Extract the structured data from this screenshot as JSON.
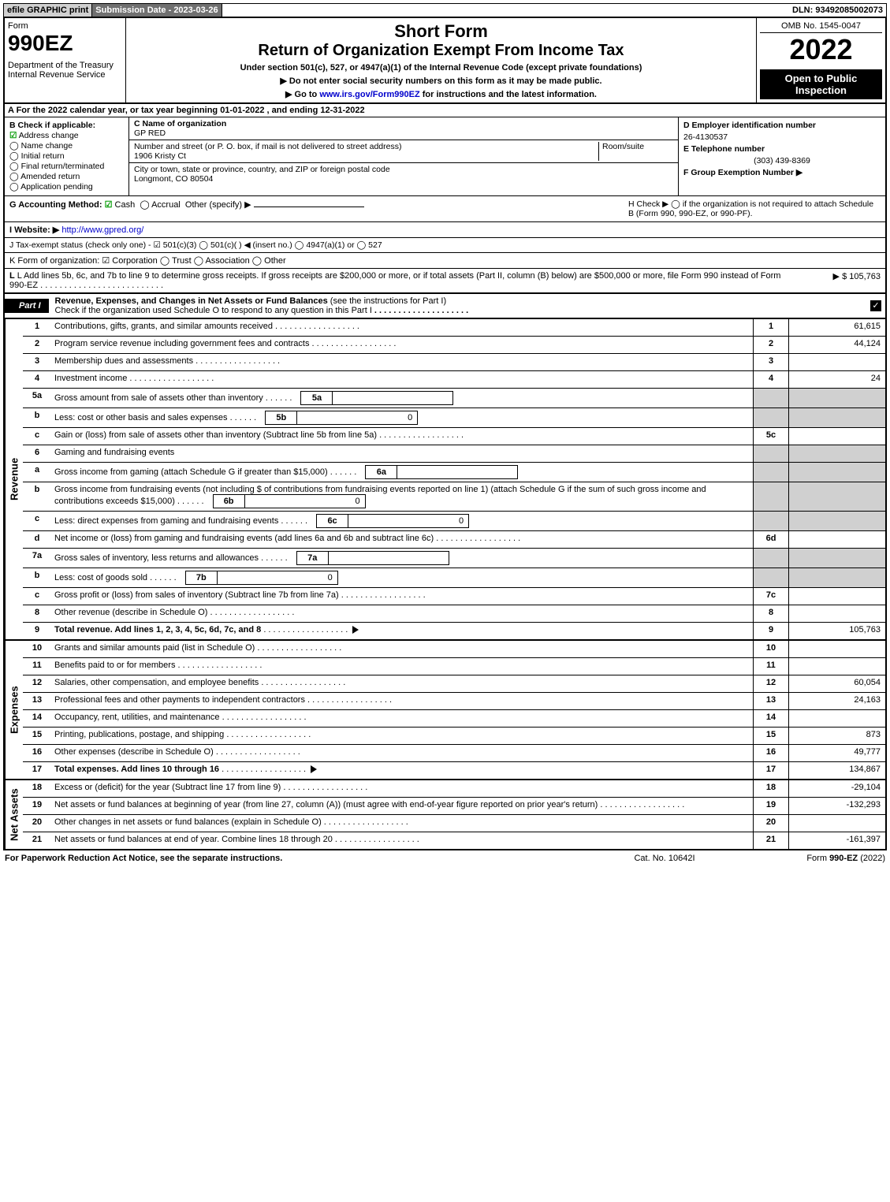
{
  "topbar": {
    "efile": "efile GRAPHIC print",
    "submission": "Submission Date - 2023-03-26",
    "dln": "DLN: 93492085002073"
  },
  "header": {
    "form_word": "Form",
    "form_number": "990EZ",
    "dept": "Department of the Treasury\nInternal Revenue Service",
    "short_form": "Short Form",
    "title": "Return of Organization Exempt From Income Tax",
    "under_section": "Under section 501(c), 527, or 4947(a)(1) of the Internal Revenue Code (except private foundations)",
    "no_ssn": "▶ Do not enter social security numbers on this form as it may be made public.",
    "goto": "▶ Go to www.irs.gov/Form990EZ for instructions and the latest information.",
    "goto_link": "www.irs.gov/Form990EZ",
    "omb": "OMB No. 1545-0047",
    "year": "2022",
    "open": "Open to Public Inspection"
  },
  "lineA": "A  For the 2022 calendar year, or tax year beginning 01-01-2022 , and ending 12-31-2022",
  "boxB": {
    "title": "B  Check if applicable:",
    "items": [
      {
        "label": "Address change",
        "checked": true
      },
      {
        "label": "Name change",
        "checked": false
      },
      {
        "label": "Initial return",
        "checked": false
      },
      {
        "label": "Final return/terminated",
        "checked": false
      },
      {
        "label": "Amended return",
        "checked": false
      },
      {
        "label": "Application pending",
        "checked": false
      }
    ]
  },
  "boxC": {
    "c_label": "C Name of organization",
    "c_name": "GP RED",
    "street_label": "Number and street (or P. O. box, if mail is not delivered to street address)",
    "room_label": "Room/suite",
    "street": "1906 Kristy Ct",
    "city_label": "City or town, state or province, country, and ZIP or foreign postal code",
    "city": "Longmont, CO  80504"
  },
  "boxDE": {
    "d_label": "D Employer identification number",
    "d_val": "26-4130537",
    "e_label": "E Telephone number",
    "e_val": "(303) 439-8369",
    "f_label": "F Group Exemption Number  ▶"
  },
  "lineG": {
    "label": "G Accounting Method:",
    "cash": "Cash",
    "accrual": "Accrual",
    "other": "Other (specify) ▶",
    "h_text": "H  Check ▶  ◯  if the organization is not required to attach Schedule B (Form 990, 990-EZ, or 990-PF)."
  },
  "lineI": {
    "label": "I Website: ▶",
    "url": "http://www.gpred.org/"
  },
  "lineJ": "J Tax-exempt status (check only one) - ☑ 501(c)(3) ◯ 501(c)(  ) ◀ (insert no.) ◯ 4947(a)(1) or ◯ 527",
  "lineK": "K Form of organization:  ☑ Corporation  ◯ Trust  ◯ Association  ◯ Other",
  "lineL": {
    "text": "L Add lines 5b, 6c, and 7b to line 9 to determine gross receipts. If gross receipts are $200,000 or more, or if total assets (Part II, column (B) below) are $500,000 or more, file Form 990 instead of Form 990-EZ",
    "amount": "▶ $ 105,763"
  },
  "part1": {
    "label": "Part I",
    "title": "Revenue, Expenses, and Changes in Net Assets or Fund Balances",
    "note": "(see the instructions for Part I)",
    "check_note": "Check if the organization used Schedule O to respond to any question in this Part I"
  },
  "revenue": {
    "side": "Revenue",
    "rows": [
      {
        "n": "1",
        "desc": "Contributions, gifts, grants, and similar amounts received",
        "box": "1",
        "amt": "61,615"
      },
      {
        "n": "2",
        "desc": "Program service revenue including government fees and contracts",
        "box": "2",
        "amt": "44,124"
      },
      {
        "n": "3",
        "desc": "Membership dues and assessments",
        "box": "3",
        "amt": ""
      },
      {
        "n": "4",
        "desc": "Investment income",
        "box": "4",
        "amt": "24"
      },
      {
        "n": "5a",
        "desc": "Gross amount from sale of assets other than inventory",
        "inner_box": "5a",
        "inner_val": "",
        "shaded_box": true
      },
      {
        "n": "b",
        "desc": "Less: cost or other basis and sales expenses",
        "inner_box": "5b",
        "inner_val": "0",
        "shaded_box": true
      },
      {
        "n": "c",
        "desc": "Gain or (loss) from sale of assets other than inventory (Subtract line 5b from line 5a)",
        "box": "5c",
        "amt": ""
      },
      {
        "n": "6",
        "desc": "Gaming and fundraising events",
        "shaded_box": true,
        "no_box": true
      },
      {
        "n": "a",
        "desc": "Gross income from gaming (attach Schedule G if greater than $15,000)",
        "inner_box": "6a",
        "inner_val": "",
        "shaded_box": true
      },
      {
        "n": "b",
        "desc": "Gross income from fundraising events (not including $                    of contributions from fundraising events reported on line 1) (attach Schedule G if the sum of such gross income and contributions exceeds $15,000)",
        "inner_box": "6b",
        "inner_val": "0",
        "shaded_box": true
      },
      {
        "n": "c",
        "desc": "Less: direct expenses from gaming and fundraising events",
        "inner_box": "6c",
        "inner_val": "0",
        "shaded_box": true
      },
      {
        "n": "d",
        "desc": "Net income or (loss) from gaming and fundraising events (add lines 6a and 6b and subtract line 6c)",
        "box": "6d",
        "amt": ""
      },
      {
        "n": "7a",
        "desc": "Gross sales of inventory, less returns and allowances",
        "inner_box": "7a",
        "inner_val": "",
        "shaded_box": true
      },
      {
        "n": "b",
        "desc": "Less: cost of goods sold",
        "inner_box": "7b",
        "inner_val": "0",
        "shaded_box": true
      },
      {
        "n": "c",
        "desc": "Gross profit or (loss) from sales of inventory (Subtract line 7b from line 7a)",
        "box": "7c",
        "amt": ""
      },
      {
        "n": "8",
        "desc": "Other revenue (describe in Schedule O)",
        "box": "8",
        "amt": ""
      },
      {
        "n": "9",
        "desc": "Total revenue. Add lines 1, 2, 3, 4, 5c, 6d, 7c, and 8",
        "box": "9",
        "amt": "105,763",
        "bold": true,
        "arrow": true
      }
    ]
  },
  "expenses": {
    "side": "Expenses",
    "rows": [
      {
        "n": "10",
        "desc": "Grants and similar amounts paid (list in Schedule O)",
        "box": "10",
        "amt": ""
      },
      {
        "n": "11",
        "desc": "Benefits paid to or for members",
        "box": "11",
        "amt": ""
      },
      {
        "n": "12",
        "desc": "Salaries, other compensation, and employee benefits",
        "box": "12",
        "amt": "60,054"
      },
      {
        "n": "13",
        "desc": "Professional fees and other payments to independent contractors",
        "box": "13",
        "amt": "24,163"
      },
      {
        "n": "14",
        "desc": "Occupancy, rent, utilities, and maintenance",
        "box": "14",
        "amt": ""
      },
      {
        "n": "15",
        "desc": "Printing, publications, postage, and shipping",
        "box": "15",
        "amt": "873"
      },
      {
        "n": "16",
        "desc": "Other expenses (describe in Schedule O)",
        "box": "16",
        "amt": "49,777"
      },
      {
        "n": "17",
        "desc": "Total expenses. Add lines 10 through 16",
        "box": "17",
        "amt": "134,867",
        "bold": true,
        "arrow": true
      }
    ]
  },
  "netassets": {
    "side": "Net Assets",
    "rows": [
      {
        "n": "18",
        "desc": "Excess or (deficit) for the year (Subtract line 17 from line 9)",
        "box": "18",
        "amt": "-29,104"
      },
      {
        "n": "19",
        "desc": "Net assets or fund balances at beginning of year (from line 27, column (A)) (must agree with end-of-year figure reported on prior year's return)",
        "box": "19",
        "amt": "-132,293"
      },
      {
        "n": "20",
        "desc": "Other changes in net assets or fund balances (explain in Schedule O)",
        "box": "20",
        "amt": ""
      },
      {
        "n": "21",
        "desc": "Net assets or fund balances at end of year. Combine lines 18 through 20",
        "box": "21",
        "amt": "-161,397"
      }
    ]
  },
  "footer": {
    "left": "For Paperwork Reduction Act Notice, see the separate instructions.",
    "center": "Cat. No. 10642I",
    "right": "Form 990-EZ (2022)",
    "right_bold": "990-EZ"
  }
}
